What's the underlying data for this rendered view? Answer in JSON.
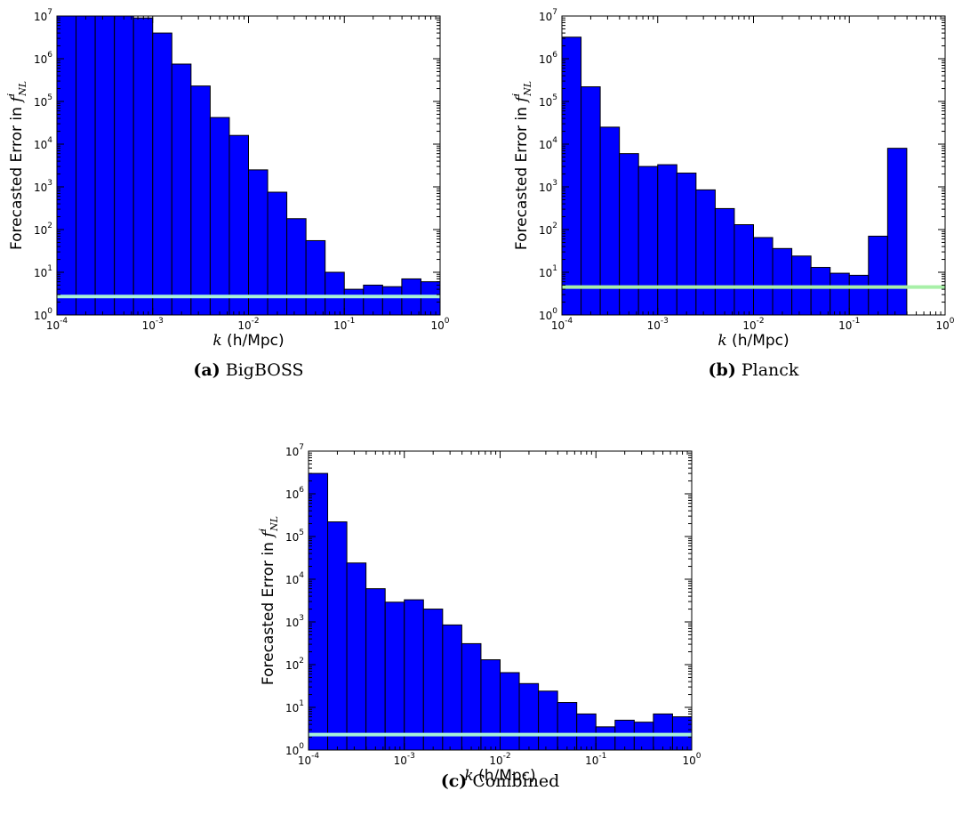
{
  "chart_data": [
    {
      "type": "bar",
      "panel": "a",
      "caption_letter": "(a)",
      "caption_text": "BigBOSS",
      "ylabel_prefix": "Forecasted Error in ",
      "ylabel_symbol": "f",
      "ylabel_sup": "i",
      "ylabel_sub": "NL",
      "xlabel_symbol": "k",
      "xlabel_unit": " (h/Mpc)",
      "x_scale": "log",
      "y_scale": "log",
      "xlim": [
        0.0001,
        1
      ],
      "ylim": [
        1,
        10000000
      ],
      "x_ticks": [
        {
          "base": "10",
          "exp": "-4"
        },
        {
          "base": "10",
          "exp": "-3"
        },
        {
          "base": "10",
          "exp": "-2"
        },
        {
          "base": "10",
          "exp": "-1"
        },
        {
          "base": "10",
          "exp": "0"
        }
      ],
      "y_ticks": [
        {
          "base": "10",
          "exp": "0"
        },
        {
          "base": "10",
          "exp": "1"
        },
        {
          "base": "10",
          "exp": "2"
        },
        {
          "base": "10",
          "exp": "3"
        },
        {
          "base": "10",
          "exp": "4"
        },
        {
          "base": "10",
          "exp": "5"
        },
        {
          "base": "10",
          "exp": "6"
        },
        {
          "base": "10",
          "exp": "7"
        }
      ],
      "bin_edges": [
        0.0001,
        0.00015849,
        0.00025119,
        0.00039811,
        0.00063096,
        0.001,
        0.0015849,
        0.0025119,
        0.0039811,
        0.0063096,
        0.01,
        0.015849,
        0.025119,
        0.039811,
        0.063096,
        0.1,
        0.15849,
        0.25119,
        0.39811,
        0.63096,
        1
      ],
      "values": [
        10000000,
        10000000,
        10000000,
        10000000,
        9000000,
        4000000,
        750000,
        230000,
        42000,
        16000,
        2500,
        750,
        180,
        55,
        10,
        4,
        5,
        4.6,
        7,
        6
      ],
      "combined_level": 2.7,
      "bar_color": "#0000ff",
      "line_color": "#a8f0d8"
    },
    {
      "type": "bar",
      "panel": "b",
      "caption_letter": "(b)",
      "caption_text": "Planck",
      "ylabel_prefix": "Forecasted Error in ",
      "ylabel_symbol": "f",
      "ylabel_sup": "i",
      "ylabel_sub": "NL",
      "xlabel_symbol": "k",
      "xlabel_unit": " (h/Mpc)",
      "x_scale": "log",
      "y_scale": "log",
      "xlim": [
        0.0001,
        1
      ],
      "ylim": [
        1,
        10000000
      ],
      "x_ticks": [
        {
          "base": "10",
          "exp": "-4"
        },
        {
          "base": "10",
          "exp": "-3"
        },
        {
          "base": "10",
          "exp": "-2"
        },
        {
          "base": "10",
          "exp": "-1"
        },
        {
          "base": "10",
          "exp": "0"
        }
      ],
      "y_ticks": [
        {
          "base": "10",
          "exp": "0"
        },
        {
          "base": "10",
          "exp": "1"
        },
        {
          "base": "10",
          "exp": "2"
        },
        {
          "base": "10",
          "exp": "3"
        },
        {
          "base": "10",
          "exp": "4"
        },
        {
          "base": "10",
          "exp": "5"
        },
        {
          "base": "10",
          "exp": "6"
        },
        {
          "base": "10",
          "exp": "7"
        }
      ],
      "bin_edges": [
        0.0001,
        0.00015849,
        0.00025119,
        0.00039811,
        0.00063096,
        0.001,
        0.0015849,
        0.0025119,
        0.0039811,
        0.0063096,
        0.01,
        0.015849,
        0.025119,
        0.039811,
        0.063096,
        0.1,
        0.15849,
        0.25119,
        0.39811
      ],
      "values": [
        3200000,
        220000,
        25000,
        6000,
        3000,
        3300,
        2100,
        850,
        310,
        130,
        65,
        36,
        24,
        13,
        9.5,
        8.5,
        70,
        8000
      ],
      "combined_level": 4.5,
      "bar_color": "#0000ff",
      "line_color": "#a8f0a8"
    },
    {
      "type": "bar",
      "panel": "c",
      "caption_letter": "(c)",
      "caption_text": "Combined",
      "ylabel_prefix": "Forecasted Error in ",
      "ylabel_symbol": "f",
      "ylabel_sup": "i",
      "ylabel_sub": "NL",
      "xlabel_symbol": "k",
      "xlabel_unit": " (h/Mpc)",
      "x_scale": "log",
      "y_scale": "log",
      "xlim": [
        0.0001,
        1
      ],
      "ylim": [
        1,
        10000000
      ],
      "x_ticks": [
        {
          "base": "10",
          "exp": "-4"
        },
        {
          "base": "10",
          "exp": "-3"
        },
        {
          "base": "10",
          "exp": "-2"
        },
        {
          "base": "10",
          "exp": "-1"
        },
        {
          "base": "10",
          "exp": "0"
        }
      ],
      "y_ticks": [
        {
          "base": "10",
          "exp": "0"
        },
        {
          "base": "10",
          "exp": "1"
        },
        {
          "base": "10",
          "exp": "2"
        },
        {
          "base": "10",
          "exp": "3"
        },
        {
          "base": "10",
          "exp": "4"
        },
        {
          "base": "10",
          "exp": "5"
        },
        {
          "base": "10",
          "exp": "6"
        },
        {
          "base": "10",
          "exp": "7"
        }
      ],
      "bin_edges": [
        0.0001,
        0.00015849,
        0.00025119,
        0.00039811,
        0.00063096,
        0.001,
        0.0015849,
        0.0025119,
        0.0039811,
        0.0063096,
        0.01,
        0.015849,
        0.025119,
        0.039811,
        0.063096,
        0.1,
        0.15849,
        0.25119,
        0.39811,
        0.63096,
        1
      ],
      "values": [
        3000000,
        220000,
        24000,
        6000,
        2900,
        3300,
        2000,
        850,
        310,
        130,
        65,
        36,
        24,
        13,
        7,
        3.5,
        5,
        4.5,
        7,
        6
      ],
      "combined_level": 2.3,
      "bar_color": "#0000ff",
      "line_color": "#a8f0d8"
    }
  ]
}
